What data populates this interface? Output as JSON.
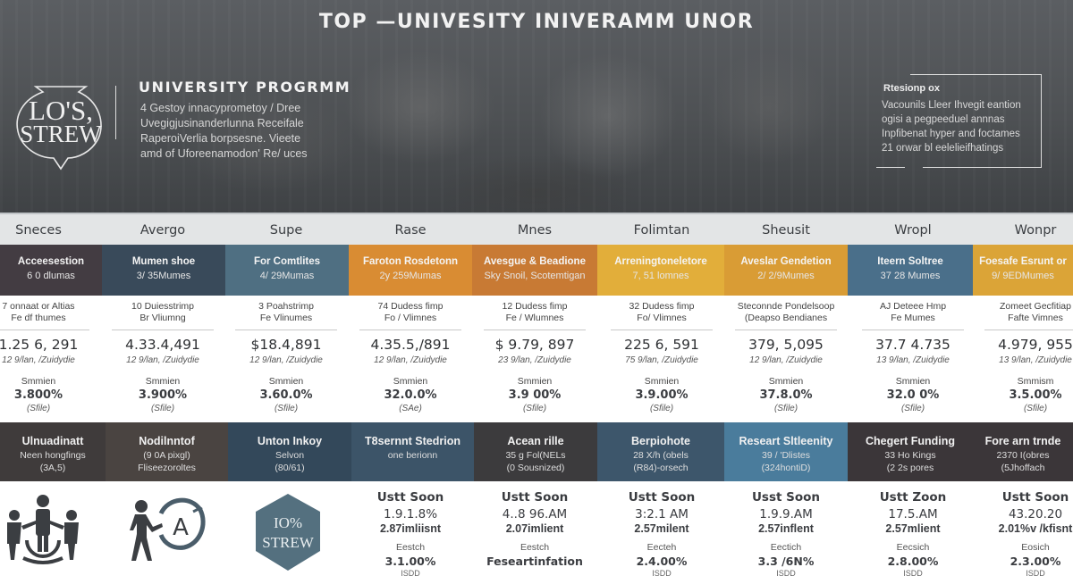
{
  "hero": {
    "title": "TOP —UNIVESITY INIVERAMM UNOR",
    "logo": {
      "line1": "LO'S,",
      "line2": "STREW"
    },
    "program": {
      "title": "UNIVERSITY PROGRMM",
      "lines": [
        "4 Gestoy innacyprometoy / Dree",
        "Uvegigjusinanderlunna  Receifale",
        "RaperoiVerlia borpsesne.  Vieete",
        "amd of Uforeenamodon' Re/ uces"
      ]
    },
    "info_box": {
      "heading": "Rtesionp ox",
      "lines": [
        "Vacounils  Lleer Ihvegit eantion",
        "ogisi a pegpeeduel annnas",
        "Inpfibenat hyper and foctames",
        "21 orwar bl eelelieifhatings"
      ]
    }
  },
  "columns": [
    {
      "header": "Sneces",
      "band": {
        "title": "Acceesestion",
        "sub": "6 0 dlumas",
        "color": "#433c42"
      },
      "detail": {
        "l1": "7 onnaat or Altias",
        "l2": "Fe df thumes"
      },
      "value": "1.25 6, 291",
      "value_sub": "12 9/lan, /Zuidydie",
      "label": "Smmien",
      "pct": "3.800%",
      "note": "(Sfile)"
    },
    {
      "header": "Avergo",
      "band": {
        "title": "Mumen shoe",
        "sub": "3/ 35Mumes",
        "color": "#394a5a"
      },
      "detail": {
        "l1": "10 Duiesstrimp",
        "l2": "Br Vliumng"
      },
      "value": "4.33.4,491",
      "value_sub": "12 9/lan, /Zuidydie",
      "label": "Smmien",
      "pct": "3.900%",
      "note": "(Sfile)"
    },
    {
      "header": "Supe",
      "band": {
        "title": "For Comtlites",
        "sub": "4/ 29Mumas",
        "color": "#4f6f82"
      },
      "detail": {
        "l1": "3 Poahstrimp",
        "l2": "Fe Vlinumes"
      },
      "value": "$18.4,891",
      "value_sub": "12 9/lan, /Zuidydie",
      "label": "Smmien",
      "pct": "3.60.0%",
      "note": "(Sfile)"
    },
    {
      "header": "Rase",
      "band": {
        "title": "Faroton Rosdetonn",
        "sub": "2y 259Mumas",
        "color": "#d98c33"
      },
      "detail": {
        "l1": "74 Dudess fimp",
        "l2": "Fo / Vlimnes"
      },
      "value": "4.35.5,/891",
      "value_sub": "12 9/lan, /Zuidydie",
      "label": "Smmien",
      "pct": "32.0.0%",
      "note": "(SAe)"
    },
    {
      "header": "Mnes",
      "band": {
        "title": "Avesgue & Beadione",
        "sub": "Sky Snoil, Scotemtigan",
        "color": "#c87a34"
      },
      "detail": {
        "l1": "12 Dudess fimp",
        "l2": "Fe / Wlumnes"
      },
      "value": "$ 9.79, 897",
      "value_sub": "23 9/lan, /Zuidydie",
      "label": "Smmien",
      "pct": "3.9 00%",
      "note": "(Sfile)"
    },
    {
      "header": "Folimtan",
      "band": {
        "title": "Arreningtoneletore",
        "sub": "7, 51 lomnes",
        "color": "#e2ae3a"
      },
      "detail": {
        "l1": "32 Dudess fimp",
        "l2": "Fo/ Vlimnes"
      },
      "value": "225 6, 591",
      "value_sub": "75 9/lan, /Zuidydie",
      "label": "Smmien",
      "pct": "3.9.00%",
      "note": "(Sfile)"
    },
    {
      "header": "Sheusit",
      "band": {
        "title": "Aveslar Gendetion",
        "sub": "2/ 2/9Mumes",
        "color": "#d99c35"
      },
      "detail": {
        "l1": "Steconnde Pondelsoop",
        "l2": "(Deapso Bendianes"
      },
      "value": "379, 5,095",
      "value_sub": "12 9/lan, /Zuidydie",
      "label": "Smmien",
      "pct": "37.8.0%",
      "note": "(Sfile)"
    },
    {
      "header": "Wropl",
      "band": {
        "title": "Iteern Soltree",
        "sub": "37 28 Mumes",
        "color": "#4a6f8a"
      },
      "detail": {
        "l1": "AJ Deteee Hmp",
        "l2": "Fe Mumes"
      },
      "value": "37.7 4.735",
      "value_sub": "13 9/lan, /Zuidydie",
      "label": "Smmien",
      "pct": "32.0 0%",
      "note": "(Sfile)"
    },
    {
      "header": "Wonpr",
      "band": {
        "title": "Foesafe Esrunt or",
        "sub": "9/ 9EDMumes",
        "color": "#dba437"
      },
      "detail": {
        "l1": "Zomeet Gecfitiap",
        "l2": "Fafte Vimnes"
      },
      "value": "4.979, 955",
      "value_sub": "13 9/lan, /Zuidydie",
      "label": "Smmism",
      "pct": "3.5.00%",
      "note": "(Sfile)"
    }
  ],
  "lower_bands": [
    {
      "title": "Ulnuadinatt",
      "l1": "Neen hongfings",
      "l2": "(3A,5)",
      "color": "#3f3b3b"
    },
    {
      "title": "Nodilnntof",
      "l1": "(9 0A pixgl)",
      "l2": "Fliseezoroltes",
      "color": "#4a4441"
    },
    {
      "title": "Unton Inkoy",
      "l1": "Selvon",
      "l2": "(80/61)",
      "color": "#33485a"
    },
    {
      "title": "T8sernnt Stedrion",
      "l1": "one berionn",
      "l2": "",
      "color": "#3c5468"
    },
    {
      "title": "Acean rille",
      "l1": "35 g Fol(NELs",
      "l2": "(0 Sousnized)",
      "color": "#3c3b3d"
    },
    {
      "title": "Berpiohote",
      "l1": "28 X/h (obels",
      "l2": "(R84)-orsech",
      "color": "#3d566b"
    },
    {
      "title": "Researt Sltleenity",
      "l1": "39 / 'Dlistes",
      "l2": "(324hontiD)",
      "color": "#4a7c9c"
    },
    {
      "title": "Chegert Funding",
      "l1": "33 Ho Kings",
      "l2": "(2 2s pores",
      "color": "#3b3639"
    },
    {
      "title": "Fore arn trnde",
      "l1": "2370 I(obres",
      "l2": "(5Jhoffach",
      "color": "#3b3639"
    }
  ],
  "icons": [
    {
      "name": "group-people-icon"
    },
    {
      "name": "person-grade-a-icon"
    },
    {
      "name": "hexagon-badge-icon",
      "line1": "IO%",
      "line2": "STREW"
    }
  ],
  "lower_stats": [
    {
      "head": "Ustt Soon",
      "big": "1.9.1.8%",
      "mid": "2.87imliisnt",
      "label": "Eestch",
      "pct": "3.1.00%",
      "note": "ISDD"
    },
    {
      "head": "Ustt Soon",
      "big": "4..8 96.AM",
      "mid": "2.07imlient",
      "label": "Eestch",
      "pct": "Feseartinfation",
      "note": ""
    },
    {
      "head": "Ustt Soon",
      "big": "3:2.1 AM",
      "mid": "2.57milent",
      "label": "Eecteh",
      "pct": "2.4.00%",
      "note": "ISDD"
    },
    {
      "head": "Usst Soon",
      "big": "1.9.9.AM",
      "mid": "2.57inflent",
      "label": "Eectich",
      "pct": "3.3 /6N%",
      "note": "ISDD"
    },
    {
      "head": "Ustt Zoon",
      "big": "17.5.AM",
      "mid": "2.57mlient",
      "label": "Eecsich",
      "pct": "2.8.00%",
      "note": "ISDD"
    },
    {
      "head": "Ustt Soon",
      "big": "43.20.20",
      "mid": "2.01%v /kfisnt",
      "label": "Eosich",
      "pct": "2.3.00%",
      "note": "ISDD"
    }
  ]
}
